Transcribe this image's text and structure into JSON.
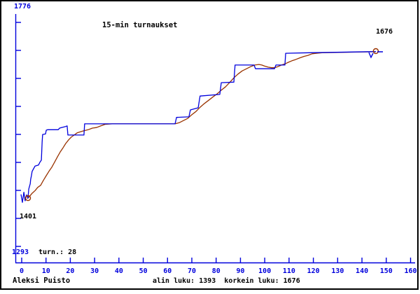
{
  "title": "15-min turnaukset",
  "colors": {
    "axis": "#0000dd",
    "rating_line": "#0000dd",
    "average_line": "#993300",
    "label_text": "#000000",
    "frame": "#000000"
  },
  "labels": {
    "y_axis_top": "1776",
    "y_axis_bottom": "1293",
    "tournament_count": "turn.: 28",
    "start_point": "1401",
    "end_point": "1676"
  },
  "footer": {
    "player": "Aleksi Puisto",
    "stats": "alin luku: 1393  korkein luku: 1676"
  },
  "chart_data": {
    "type": "line",
    "title": "15-min turnaukset",
    "x_axis": {
      "min": 0,
      "max": 160,
      "tick_step": 10,
      "ticks": [
        0,
        10,
        20,
        30,
        40,
        50,
        60,
        70,
        80,
        90,
        100,
        110,
        120,
        130,
        140,
        150,
        160
      ]
    },
    "y_axis": {
      "min": 1293,
      "max": 1776,
      "top_label": "1776",
      "bottom_label": "1293",
      "tick_count": 9
    },
    "summary": {
      "lowest_rating": 1393,
      "highest_rating": 1676,
      "first_rating": 1401,
      "last_rating": 1676,
      "tournaments": 28
    },
    "legend": "none",
    "grid": false,
    "series": [
      {
        "name": "average",
        "color": "#993300",
        "points": [
          [
            2.3,
            1400
          ],
          [
            3.2,
            1404
          ],
          [
            4.3,
            1410
          ],
          [
            5.5,
            1415
          ],
          [
            6.6,
            1421
          ],
          [
            7.8,
            1425
          ],
          [
            8.9,
            1434
          ],
          [
            10.1,
            1443
          ],
          [
            11.2,
            1451
          ],
          [
            12.4,
            1459
          ],
          [
            13.5,
            1468
          ],
          [
            14.7,
            1478
          ],
          [
            15.8,
            1487
          ],
          [
            17.0,
            1495
          ],
          [
            18.1,
            1503
          ],
          [
            19.3,
            1510
          ],
          [
            20.4,
            1515
          ],
          [
            21.6,
            1519
          ],
          [
            22.8,
            1523
          ],
          [
            24.2,
            1525
          ],
          [
            25.6,
            1527
          ],
          [
            27.4,
            1529
          ],
          [
            29.1,
            1532
          ],
          [
            30.8,
            1533
          ],
          [
            32.5,
            1536
          ],
          [
            34.3,
            1539
          ],
          [
            37.2,
            1540
          ],
          [
            63.1,
            1540
          ],
          [
            64.8,
            1542
          ],
          [
            66.5,
            1546
          ],
          [
            68.3,
            1550
          ],
          [
            70.0,
            1557
          ],
          [
            71.7,
            1563
          ],
          [
            73.4,
            1571
          ],
          [
            75.2,
            1578
          ],
          [
            76.9,
            1584
          ],
          [
            78.6,
            1590
          ],
          [
            80.4,
            1596
          ],
          [
            82.1,
            1603
          ],
          [
            83.8,
            1609
          ],
          [
            85.5,
            1617
          ],
          [
            87.3,
            1626
          ],
          [
            89.0,
            1633
          ],
          [
            90.7,
            1639
          ],
          [
            92.5,
            1643
          ],
          [
            94.2,
            1647
          ],
          [
            95.9,
            1650
          ],
          [
            97.6,
            1651
          ],
          [
            98.8,
            1650
          ],
          [
            99.9,
            1648
          ],
          [
            101.4,
            1646
          ],
          [
            102.8,
            1645
          ],
          [
            104.0,
            1645
          ],
          [
            105.4,
            1647
          ],
          [
            106.9,
            1650
          ],
          [
            108.3,
            1652
          ],
          [
            109.7,
            1655
          ],
          [
            111.2,
            1658
          ],
          [
            112.6,
            1660
          ],
          [
            114.3,
            1663
          ],
          [
            116.1,
            1666
          ],
          [
            117.8,
            1668
          ],
          [
            119.5,
            1671
          ],
          [
            121.3,
            1672
          ],
          [
            123.6,
            1673
          ],
          [
            145.7,
            1675
          ]
        ]
      },
      {
        "name": "rating",
        "color": "#0000dd",
        "points": [
          [
            -0.3,
            1408
          ],
          [
            0.3,
            1393
          ],
          [
            0.9,
            1412
          ],
          [
            1.4,
            1396
          ],
          [
            2.0,
            1407
          ],
          [
            2.6,
            1401
          ],
          [
            2.9,
            1418
          ],
          [
            3.5,
            1428
          ],
          [
            3.7,
            1436
          ],
          [
            4.0,
            1443
          ],
          [
            4.3,
            1451
          ],
          [
            4.9,
            1456
          ],
          [
            5.5,
            1461
          ],
          [
            6.9,
            1463
          ],
          [
            7.5,
            1468
          ],
          [
            8.1,
            1472
          ],
          [
            8.4,
            1506
          ],
          [
            8.6,
            1520
          ],
          [
            9.8,
            1521
          ],
          [
            10.1,
            1528
          ],
          [
            10.7,
            1529
          ],
          [
            15.0,
            1529
          ],
          [
            15.6,
            1532
          ],
          [
            16.4,
            1533
          ],
          [
            18.1,
            1535
          ],
          [
            18.7,
            1536
          ],
          [
            19.0,
            1519
          ],
          [
            25.6,
            1519
          ],
          [
            25.9,
            1540
          ],
          [
            63.1,
            1540
          ],
          [
            63.7,
            1552
          ],
          [
            68.8,
            1553
          ],
          [
            69.4,
            1566
          ],
          [
            72.6,
            1570
          ],
          [
            73.4,
            1592
          ],
          [
            81.5,
            1595
          ],
          [
            82.1,
            1617
          ],
          [
            87.3,
            1618
          ],
          [
            87.8,
            1650
          ],
          [
            95.6,
            1650
          ],
          [
            96.2,
            1643
          ],
          [
            104.0,
            1643
          ],
          [
            104.6,
            1650
          ],
          [
            108.3,
            1650
          ],
          [
            108.6,
            1672
          ],
          [
            118.7,
            1673
          ],
          [
            144.0,
            1675
          ],
          [
            145.7,
            1675
          ]
        ]
      }
    ],
    "markers": [
      {
        "name": "start",
        "x": 2.6,
        "rating": 1401
      },
      {
        "name": "end",
        "x": 145.7,
        "rating": 1676
      }
    ]
  }
}
